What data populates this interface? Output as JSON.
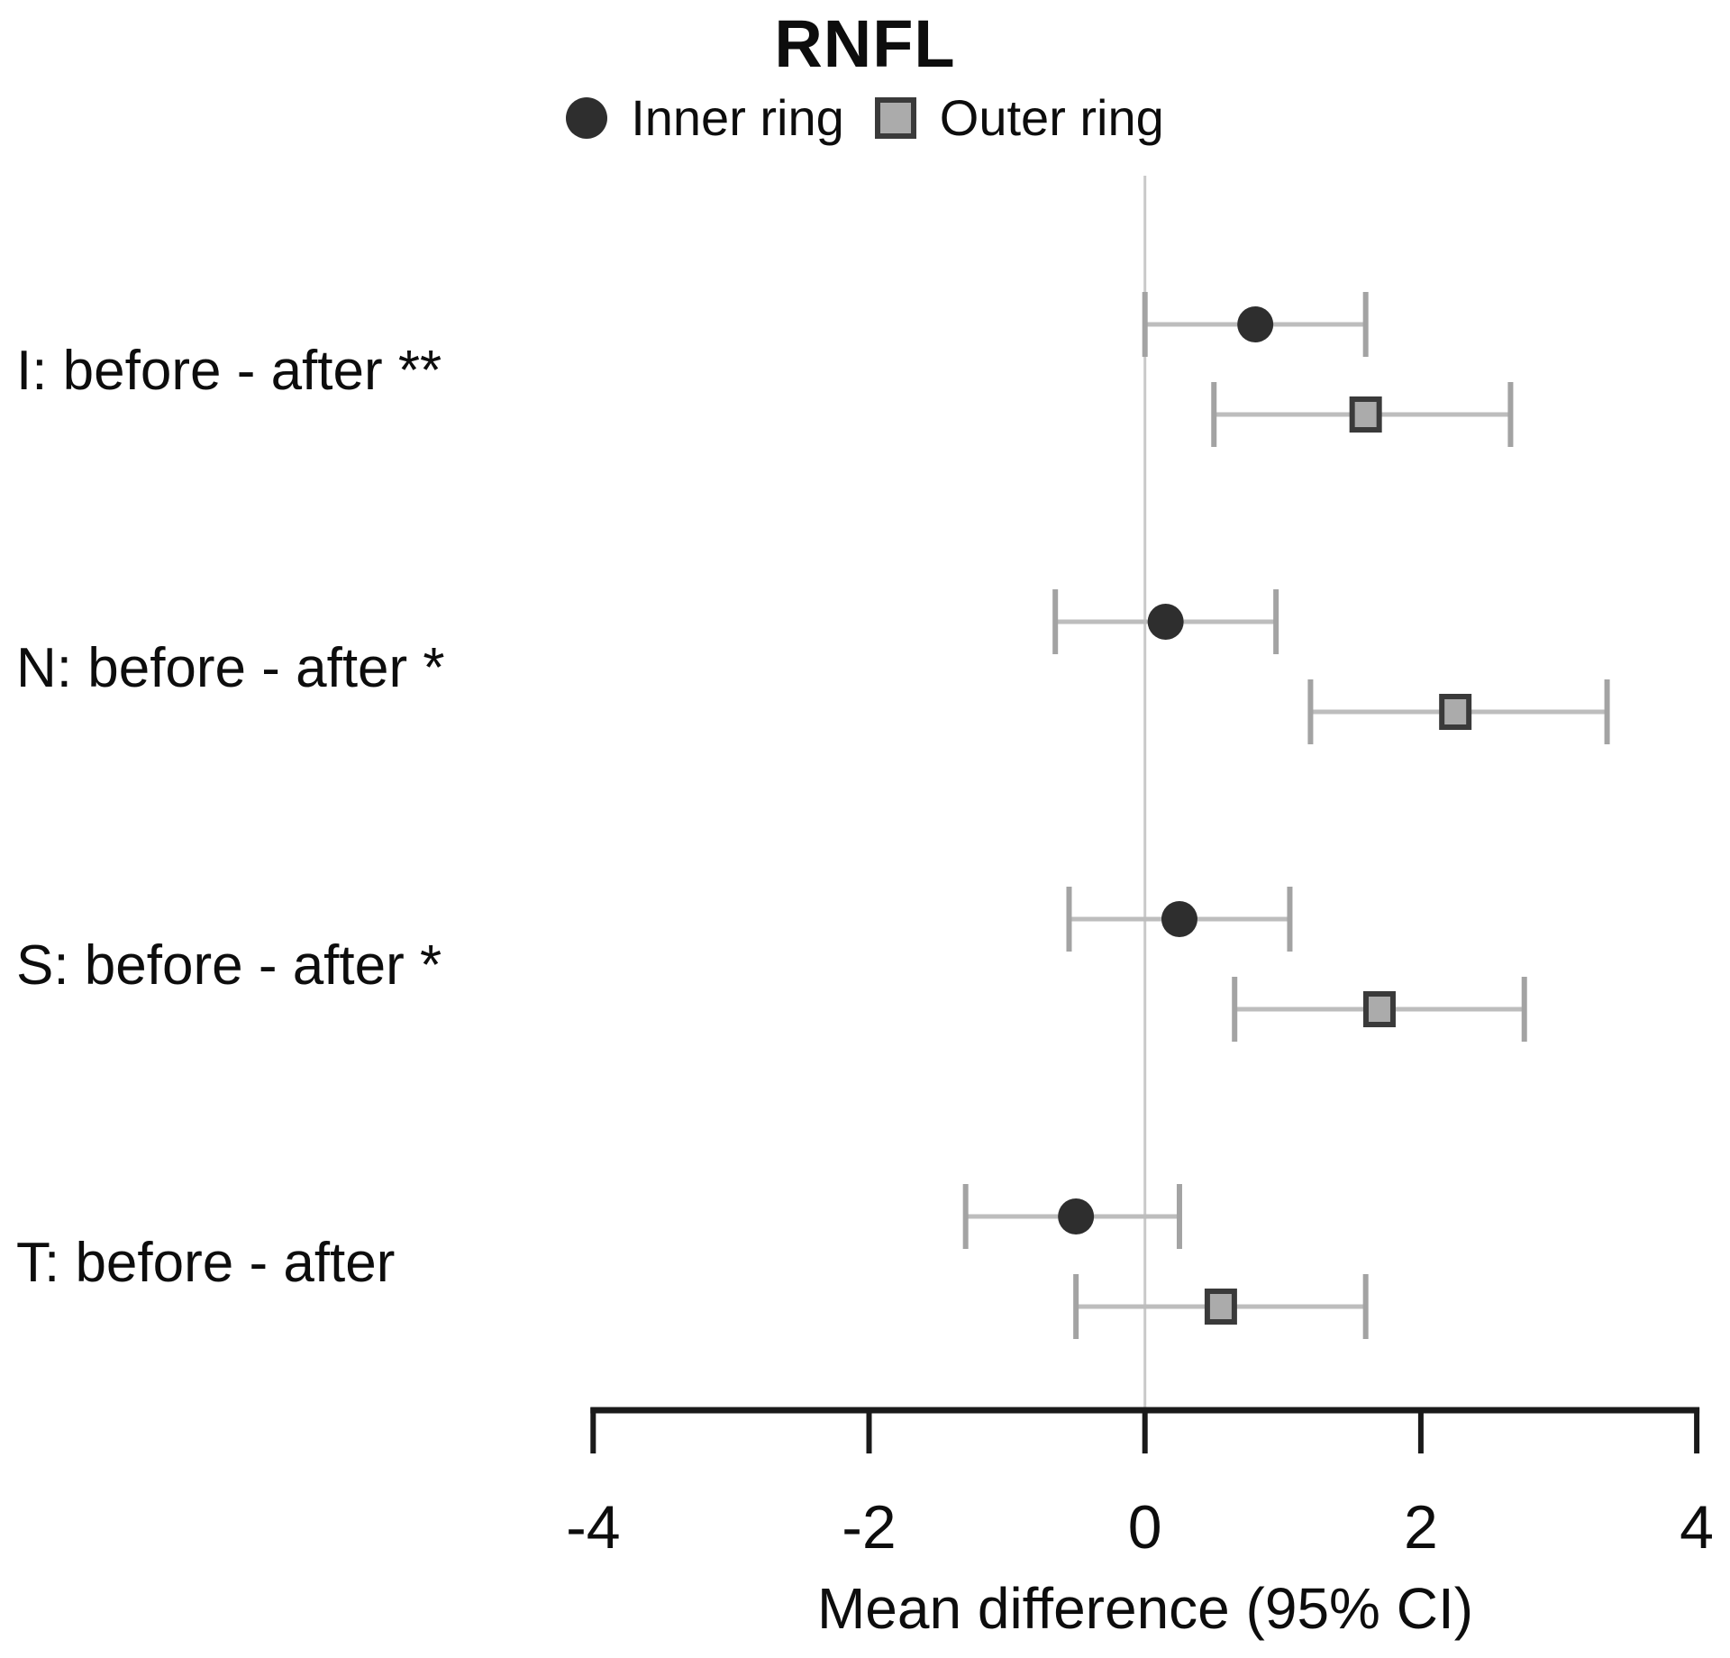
{
  "header": {
    "title": "RNFL",
    "legend": [
      {
        "label": "Inner ring",
        "marker": "circle",
        "color": "#2e2e2e"
      },
      {
        "label": "Outer ring",
        "marker": "square",
        "fill": "#ababab",
        "border": "#3a3a3a"
      }
    ]
  },
  "chart_data": {
    "type": "forest",
    "title": "RNFL",
    "xlabel": "Mean difference (95% CI)",
    "xlim": [
      -4,
      4
    ],
    "x_ticks": [
      -4,
      -2,
      0,
      2,
      4
    ],
    "zero_line": 0,
    "grid": false,
    "legend_position": "top",
    "categories": [
      "I: before - after **",
      "N: before - after *",
      "S: before - after *",
      "T: before - after"
    ],
    "series": [
      {
        "name": "Inner ring",
        "marker": "circle",
        "color": "#2e2e2e",
        "values": [
          {
            "mean": 0.8,
            "lo": 0.0,
            "hi": 1.6
          },
          {
            "mean": 0.15,
            "lo": -0.65,
            "hi": 0.95
          },
          {
            "mean": 0.25,
            "lo": -0.55,
            "hi": 1.05
          },
          {
            "mean": -0.5,
            "lo": -1.3,
            "hi": 0.25
          }
        ]
      },
      {
        "name": "Outer ring",
        "marker": "square",
        "fill": "#ababab",
        "border": "#3a3a3a",
        "values": [
          {
            "mean": 1.6,
            "lo": 0.5,
            "hi": 2.65
          },
          {
            "mean": 2.25,
            "lo": 1.2,
            "hi": 3.35
          },
          {
            "mean": 1.7,
            "lo": 0.65,
            "hi": 2.75
          },
          {
            "mean": 0.55,
            "lo": -0.5,
            "hi": 1.6
          }
        ]
      }
    ]
  },
  "colors": {
    "axis": "#1a1a1a",
    "error_bar": "#bdbdbd",
    "whisker_cap": "#a3a3a3",
    "zero_line": "#c9c9c9",
    "text": "#0d0d0d"
  }
}
